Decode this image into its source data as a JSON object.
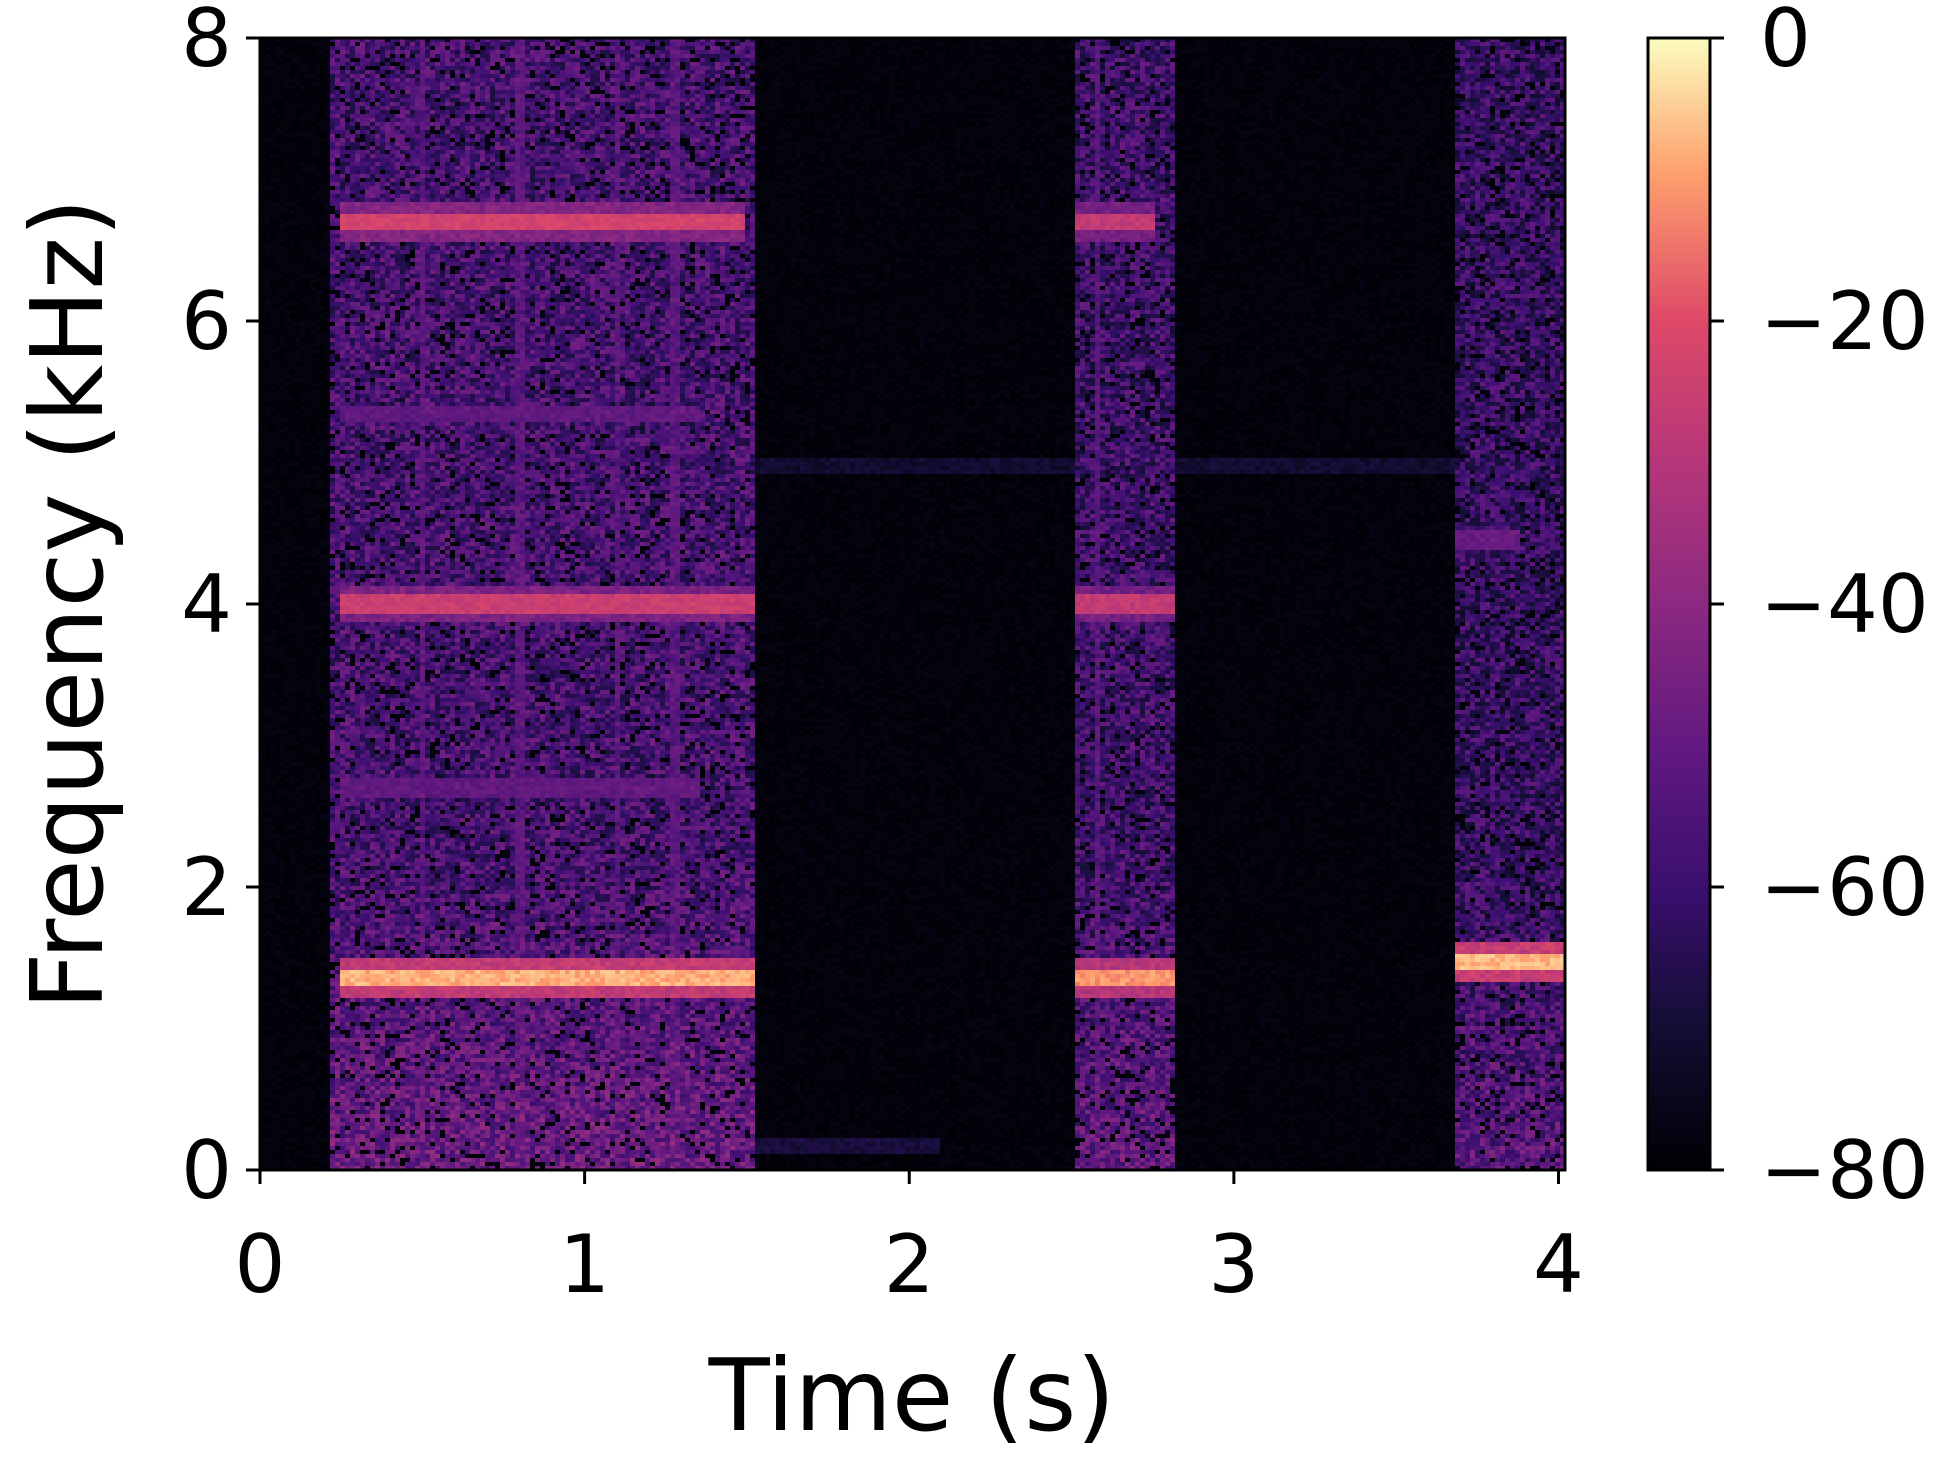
{
  "chart_data": {
    "type": "heatmap",
    "title": "",
    "xlabel": "Time (s)",
    "ylabel": "Frequency (kHz)",
    "xlim": [
      0,
      4.02
    ],
    "ylim": [
      0,
      8
    ],
    "x_ticks": [
      "0",
      "1",
      "2",
      "3",
      "4"
    ],
    "x_tick_values": [
      0,
      1,
      2,
      3,
      4
    ],
    "y_ticks": [
      "0",
      "2",
      "4",
      "6",
      "8"
    ],
    "y_tick_values": [
      0,
      2,
      4,
      6,
      8
    ],
    "colormap": "magma",
    "colorbar": {
      "range": [
        -80,
        0
      ],
      "ticks": [
        "0",
        "−20",
        "−40",
        "−60",
        "−80"
      ],
      "tick_values": [
        0,
        -20,
        -40,
        -60,
        -80
      ],
      "placement": "right"
    },
    "background_db": -80,
    "segments": [
      {
        "t_start": 0.22,
        "t_end": 1.52,
        "f_max": 8.0,
        "noise_db": -60
      },
      {
        "t_start": 2.51,
        "t_end": 2.82,
        "f_max": 8.0,
        "noise_db": -62
      },
      {
        "t_start": 3.68,
        "t_end": 4.02,
        "f_max": 8.0,
        "noise_db": -64
      }
    ],
    "harmonics": [
      {
        "t_start": 0.25,
        "t_end": 1.52,
        "freq_khz": 1.35,
        "db": -5
      },
      {
        "t_start": 0.25,
        "t_end": 1.52,
        "freq_khz": 4.0,
        "db": -22
      },
      {
        "t_start": 0.25,
        "t_end": 1.5,
        "freq_khz": 6.7,
        "db": -20
      },
      {
        "t_start": 0.25,
        "t_end": 1.35,
        "freq_khz": 5.35,
        "db": -48
      },
      {
        "t_start": 0.25,
        "t_end": 1.35,
        "freq_khz": 2.7,
        "db": -48
      },
      {
        "t_start": 2.51,
        "t_end": 2.82,
        "freq_khz": 1.35,
        "db": -8
      },
      {
        "t_start": 2.51,
        "t_end": 2.82,
        "freq_khz": 4.0,
        "db": -24
      },
      {
        "t_start": 2.51,
        "t_end": 2.75,
        "freq_khz": 6.7,
        "db": -24
      },
      {
        "t_start": 3.68,
        "t_end": 4.02,
        "freq_khz": 1.47,
        "db": -4
      },
      {
        "t_start": 3.68,
        "t_end": 3.88,
        "freq_khz": 4.45,
        "db": -46
      },
      {
        "t_start": 1.45,
        "t_end": 4.02,
        "freq_khz": 4.98,
        "db": -68
      },
      {
        "t_start": 1.45,
        "t_end": 2.1,
        "freq_khz": 0.18,
        "db": -66
      }
    ],
    "vertical_streaks_s": [
      0.5,
      0.8,
      1.1,
      1.28,
      2.58
    ],
    "grid": false,
    "legend": "none"
  }
}
